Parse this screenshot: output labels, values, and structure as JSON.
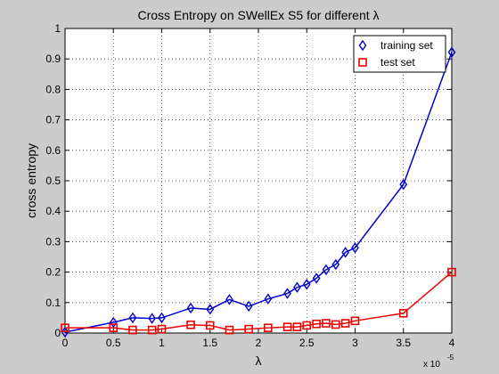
{
  "chart_data": {
    "type": "line",
    "title": "Cross Entropy on SWellEx S5 for different λ",
    "xlabel": "λ",
    "ylabel": "cross entropy",
    "x_multiplier": "x 10",
    "x_multiplier_exp": "-5",
    "xlim": [
      0,
      4
    ],
    "ylim": [
      0,
      1
    ],
    "x_ticks": [
      "0",
      "0.5",
      "1",
      "1.5",
      "2",
      "2.5",
      "3",
      "3.5",
      "4"
    ],
    "y_ticks": [
      "0",
      "0.1",
      "0.2",
      "0.3",
      "0.4",
      "0.5",
      "0.6",
      "0.7",
      "0.8",
      "0.9",
      "1"
    ],
    "grid": true,
    "legend_position": "top-right",
    "series": [
      {
        "name": "training set",
        "color": "#0000cc",
        "marker": "diamond",
        "x": [
          0,
          0.5,
          0.7,
          0.9,
          1.0,
          1.3,
          1.5,
          1.7,
          1.9,
          2.1,
          2.3,
          2.4,
          2.5,
          2.6,
          2.7,
          2.8,
          2.9,
          3.0,
          3.5,
          4.0
        ],
        "values": [
          0.003,
          0.035,
          0.05,
          0.048,
          0.05,
          0.082,
          0.078,
          0.11,
          0.088,
          0.112,
          0.13,
          0.15,
          0.16,
          0.18,
          0.208,
          0.225,
          0.265,
          0.28,
          0.488,
          0.922
        ]
      },
      {
        "name": "test set",
        "color": "#ee0000",
        "marker": "square",
        "x": [
          0,
          0.5,
          0.7,
          0.9,
          1.0,
          1.3,
          1.5,
          1.7,
          1.9,
          2.1,
          2.3,
          2.4,
          2.5,
          2.6,
          2.7,
          2.8,
          2.9,
          3.0,
          3.5,
          4.0
        ],
        "values": [
          0.017,
          0.017,
          0.01,
          0.01,
          0.013,
          0.027,
          0.025,
          0.01,
          0.013,
          0.017,
          0.02,
          0.02,
          0.025,
          0.03,
          0.032,
          0.028,
          0.032,
          0.04,
          0.065,
          0.2
        ]
      }
    ]
  }
}
